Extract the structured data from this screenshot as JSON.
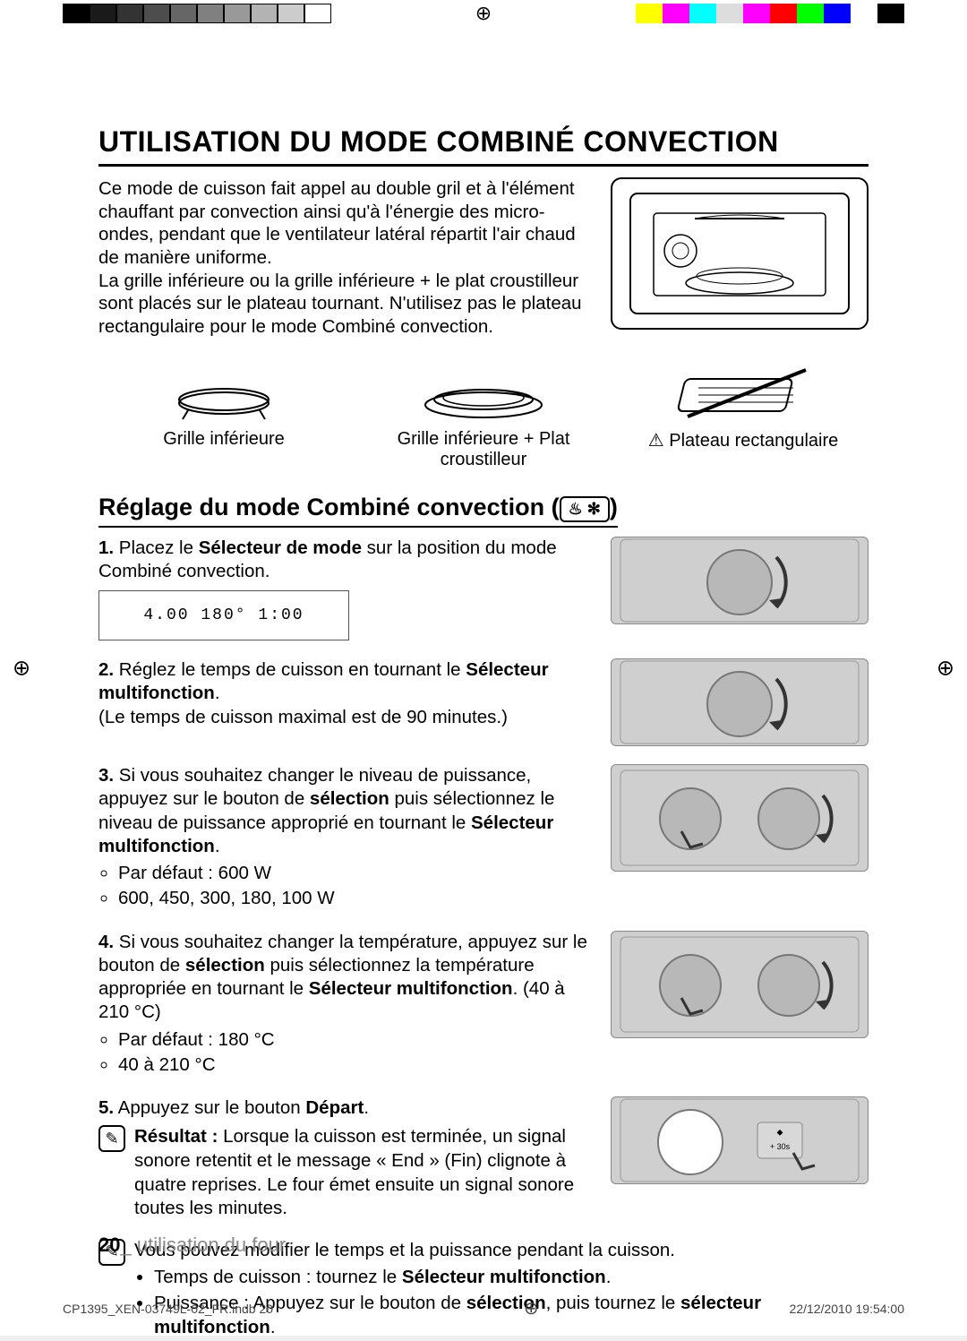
{
  "registration": {
    "grays": [
      "#000000",
      "#1a1a1a",
      "#333333",
      "#4d4d4d",
      "#666666",
      "#808080",
      "#999999",
      "#b3b3b3",
      "#cccccc",
      "#ffffff"
    ],
    "colors": [
      "#ffff00",
      "#ff00ff",
      "#00ffff",
      "#dddddd",
      "#ff00ff",
      "#ff0000",
      "#00ff00",
      "#0000ff",
      "#ffffff",
      "#000000"
    ]
  },
  "title": "UTILISATION DU MODE COMBINÉ CONVECTION",
  "intro": "Ce mode de cuisson fait appel au double gril et à l'élément chauffant par convection ainsi qu'à l'énergie des micro-ondes, pendant que le ventilateur latéral répartit l'air chaud de manière uniforme.\nLa grille inférieure ou la grille inférieure + le plat croustilleur sont placés sur le plateau tournant. N'utilisez pas le plateau rectangulaire pour le mode Combiné convection.",
  "accessories": [
    {
      "label": "Grille inférieure"
    },
    {
      "label": "Grille inférieure + Plat croustilleur"
    },
    {
      "label": "Plateau rectangulaire",
      "warning": true
    }
  ],
  "subsection_title": "Réglage du mode Combiné convection",
  "mode_icon_text": "♨ ✻",
  "steps": [
    {
      "num": "1.",
      "html": "Placez le <b>Sélecteur de mode</b> sur la position du mode Combiné convection.",
      "panel": "4.00   180°   1:00",
      "img": true
    },
    {
      "num": "2.",
      "html": "Réglez le temps de cuisson en tournant le <b>Sélecteur multifonction</b>.<br>(Le temps de cuisson maximal est de 90 minutes.)",
      "img": true
    },
    {
      "num": "3.",
      "html": "Si vous souhaitez changer le niveau de puissance, appuyez sur le bouton de <b>sélection</b> puis sélectionnez le niveau de puissance approprié en tournant le <b>Sélecteur multifonction</b>.",
      "bullets": [
        "Par défaut : 600 W",
        "600, 450, 300, 180, 100 W"
      ],
      "img": true
    },
    {
      "num": "4.",
      "html": "Si vous souhaitez changer la température, appuyez sur le bouton de <b>sélection</b> puis sélectionnez la température appropriée en tournant le <b>Sélecteur multifonction</b>. (40 à 210 °C)",
      "bullets": [
        "Par défaut : 180 °C",
        "40 à 210 °C"
      ],
      "img": true
    },
    {
      "num": "5.",
      "html": "Appuyez sur le bouton <b>Départ</b>.",
      "result_label": "Résultat :",
      "result_text": "Lorsque la cuisson est terminée, un signal sonore retentit et le message « End » (Fin) clignote à quatre reprises. Le four émet ensuite un signal sonore toutes les minutes.",
      "img": true
    }
  ],
  "final_note": {
    "lead": "Vous pouvez modifier le temps et la puissance pendant la cuisson.",
    "bullets": [
      "Temps de cuisson : tournez le <b>Sélecteur multifonction</b>.",
      "Puissance : Appuyez sur le bouton de <b>sélection</b>, puis tournez le <b>sélecteur multifonction</b>."
    ]
  },
  "footer": {
    "page_num": "20",
    "section": "utilisation du four"
  },
  "print_footer": {
    "file": "CP1395_XEN-03749L-02_FR.indb   20",
    "date": "22/12/2010   19:54:00"
  }
}
